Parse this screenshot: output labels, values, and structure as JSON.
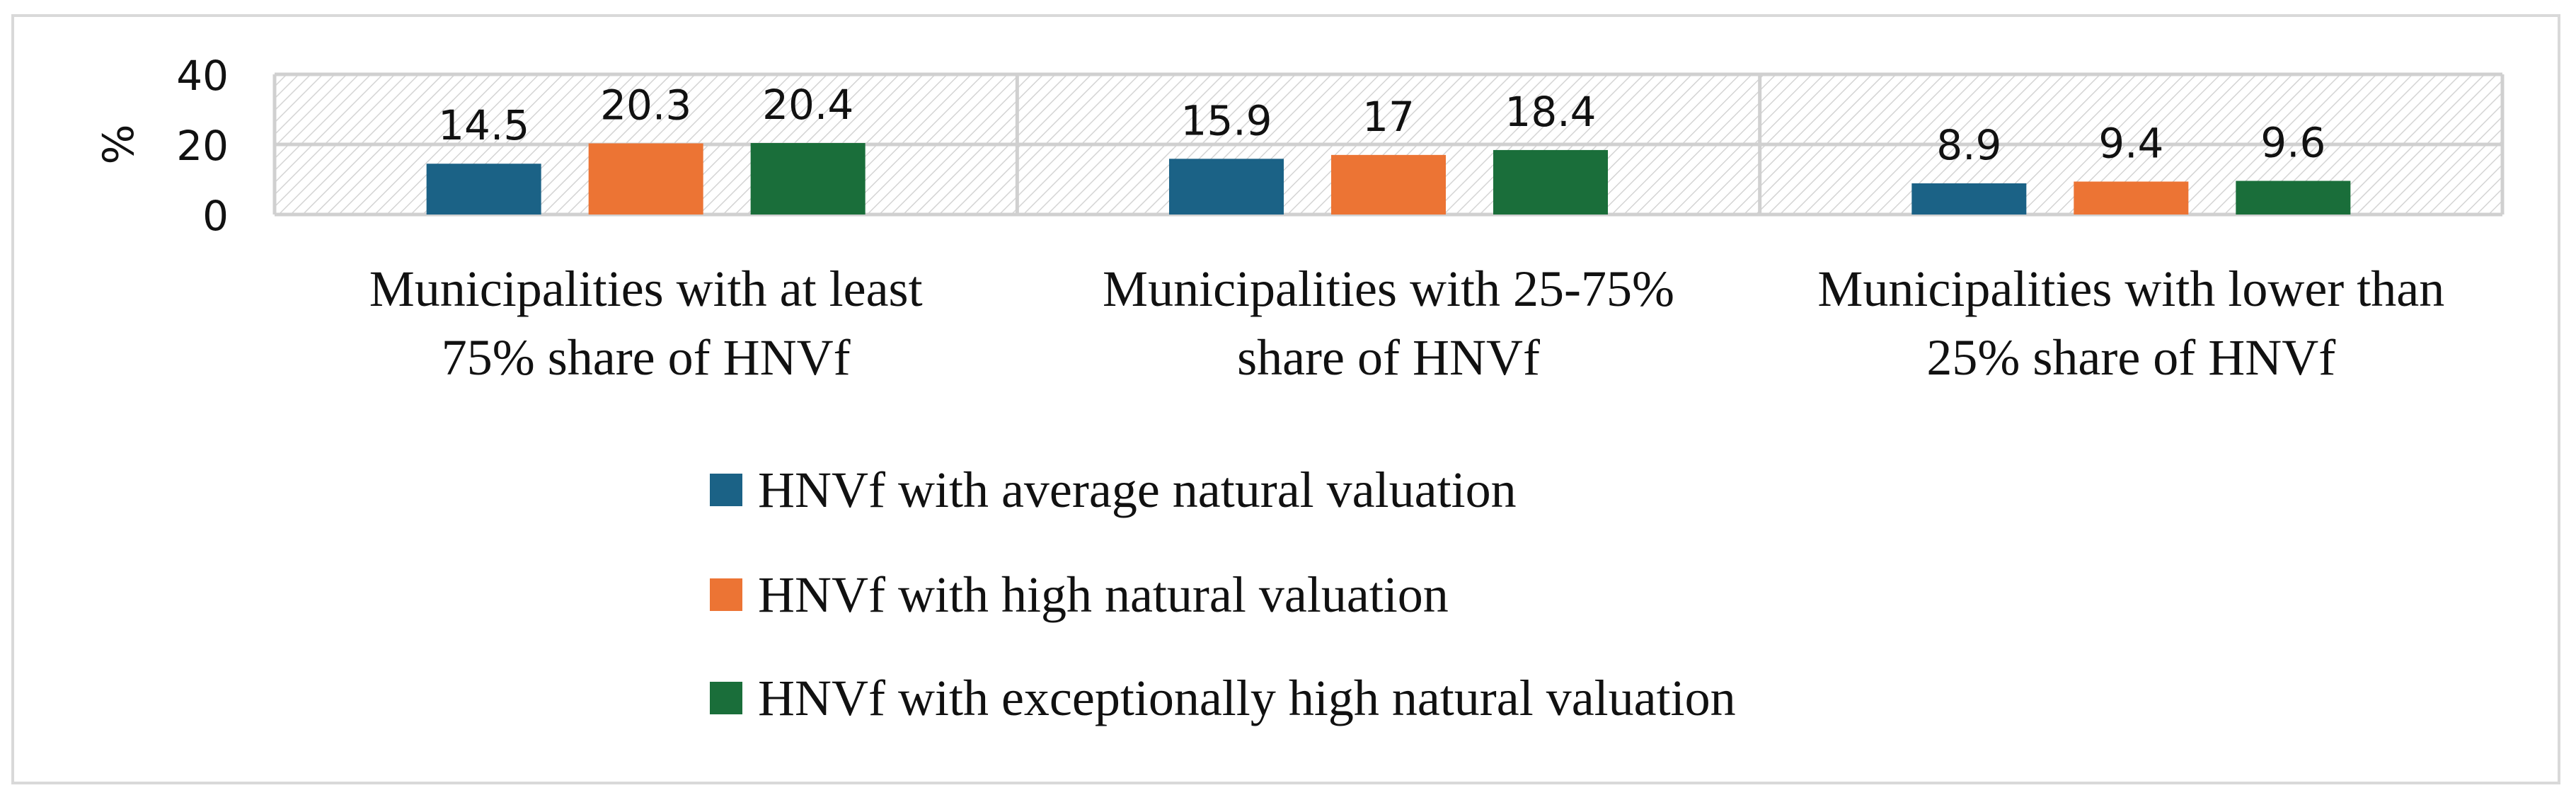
{
  "chart_data": {
    "type": "bar",
    "ylabel": "%",
    "ylim": [
      0,
      40
    ],
    "yticks": [
      "0",
      "20",
      "40"
    ],
    "grid": true,
    "legend_position": "bottom",
    "categories": [
      [
        "Municipalities with at least",
        "75% share of HNVf"
      ],
      [
        "Municipalities with 25-75%",
        "share of HNVf"
      ],
      [
        "Municipalities with lower than",
        "25% share of HNVf"
      ]
    ],
    "series": [
      {
        "name": "HNVf with average natural valuation",
        "color": "#1b6286",
        "values": [
          14.5,
          15.9,
          8.9
        ],
        "labels": [
          "14.5",
          "15.9",
          "8.9"
        ]
      },
      {
        "name": "HNVf with high natural valuation",
        "color": "#ec7434",
        "values": [
          20.3,
          17,
          9.4
        ],
        "labels": [
          "20.3",
          "17",
          "9.4"
        ]
      },
      {
        "name": "HNVf with exceptionally high natural valuation",
        "color": "#1a6e3a",
        "values": [
          20.4,
          18.4,
          9.6
        ],
        "labels": [
          "20.4",
          "18.4",
          "9.6"
        ]
      }
    ]
  }
}
